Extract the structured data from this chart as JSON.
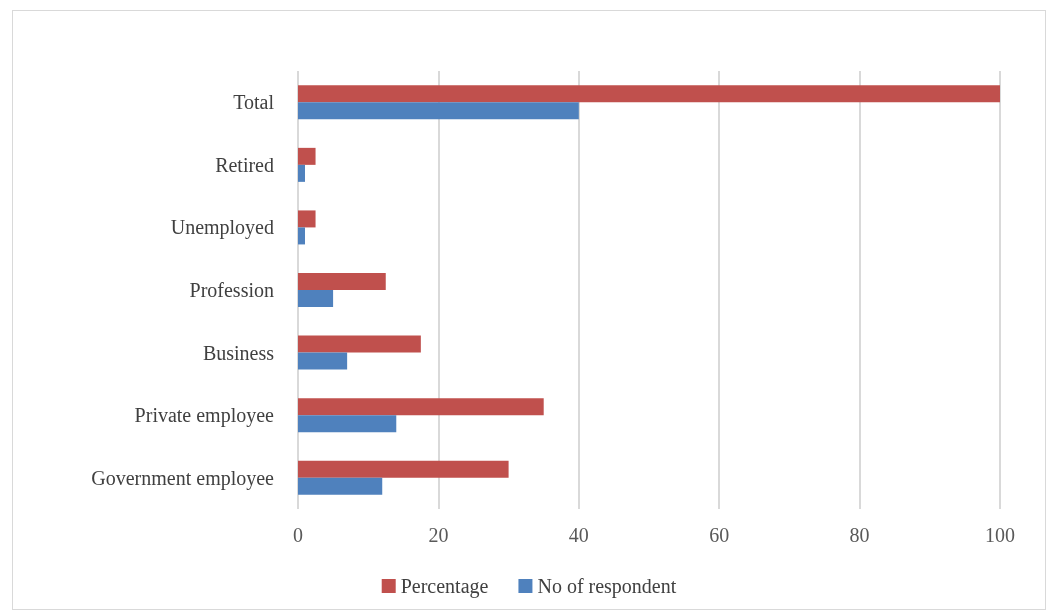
{
  "chart_data": {
    "type": "bar",
    "orientation": "horizontal",
    "categories": [
      "Total",
      "Retired",
      "Unemployed",
      "Profession",
      "Business",
      "Private employee",
      "Government employee"
    ],
    "series": [
      {
        "name": "Percentage",
        "color": "#c0504d",
        "values": [
          100,
          2.5,
          2.5,
          12.5,
          17.5,
          35,
          30
        ]
      },
      {
        "name": "No of respondent",
        "color": "#4f81bd",
        "values": [
          40,
          1,
          1,
          5,
          7,
          14,
          12
        ]
      }
    ],
    "xlim": [
      0,
      100
    ],
    "xticks": [
      0,
      20,
      40,
      60,
      80,
      100
    ],
    "grid": "x",
    "legend": "bottom"
  }
}
